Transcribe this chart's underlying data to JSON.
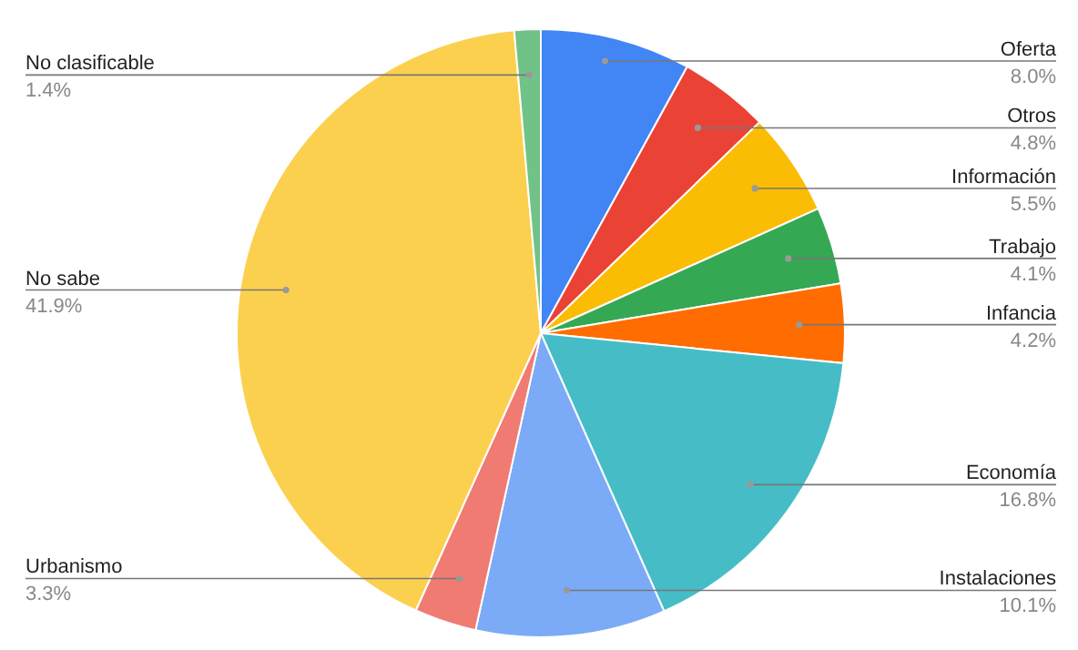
{
  "chart_data": {
    "type": "pie",
    "categories": [
      "Oferta",
      "Otros",
      "Información",
      "Trabajo",
      "Infancia",
      "Economía",
      "Instalaciones",
      "Urbanismo",
      "No sabe",
      "No clasificable"
    ],
    "values": [
      8.0,
      4.8,
      5.5,
      4.1,
      4.2,
      16.8,
      10.1,
      3.3,
      41.9,
      1.4
    ],
    "value_labels": [
      "8.0%",
      "4.8%",
      "5.5%",
      "4.1%",
      "4.2%",
      "16.8%",
      "10.1%",
      "3.3%",
      "41.9%",
      "1.4%"
    ],
    "colors": [
      "#4285f4",
      "#ea4335",
      "#fbbc04",
      "#34a853",
      "#ff6d01",
      "#46bdc6",
      "#7baaf7",
      "#f07b72",
      "#fcd04f",
      "#71c287"
    ]
  }
}
